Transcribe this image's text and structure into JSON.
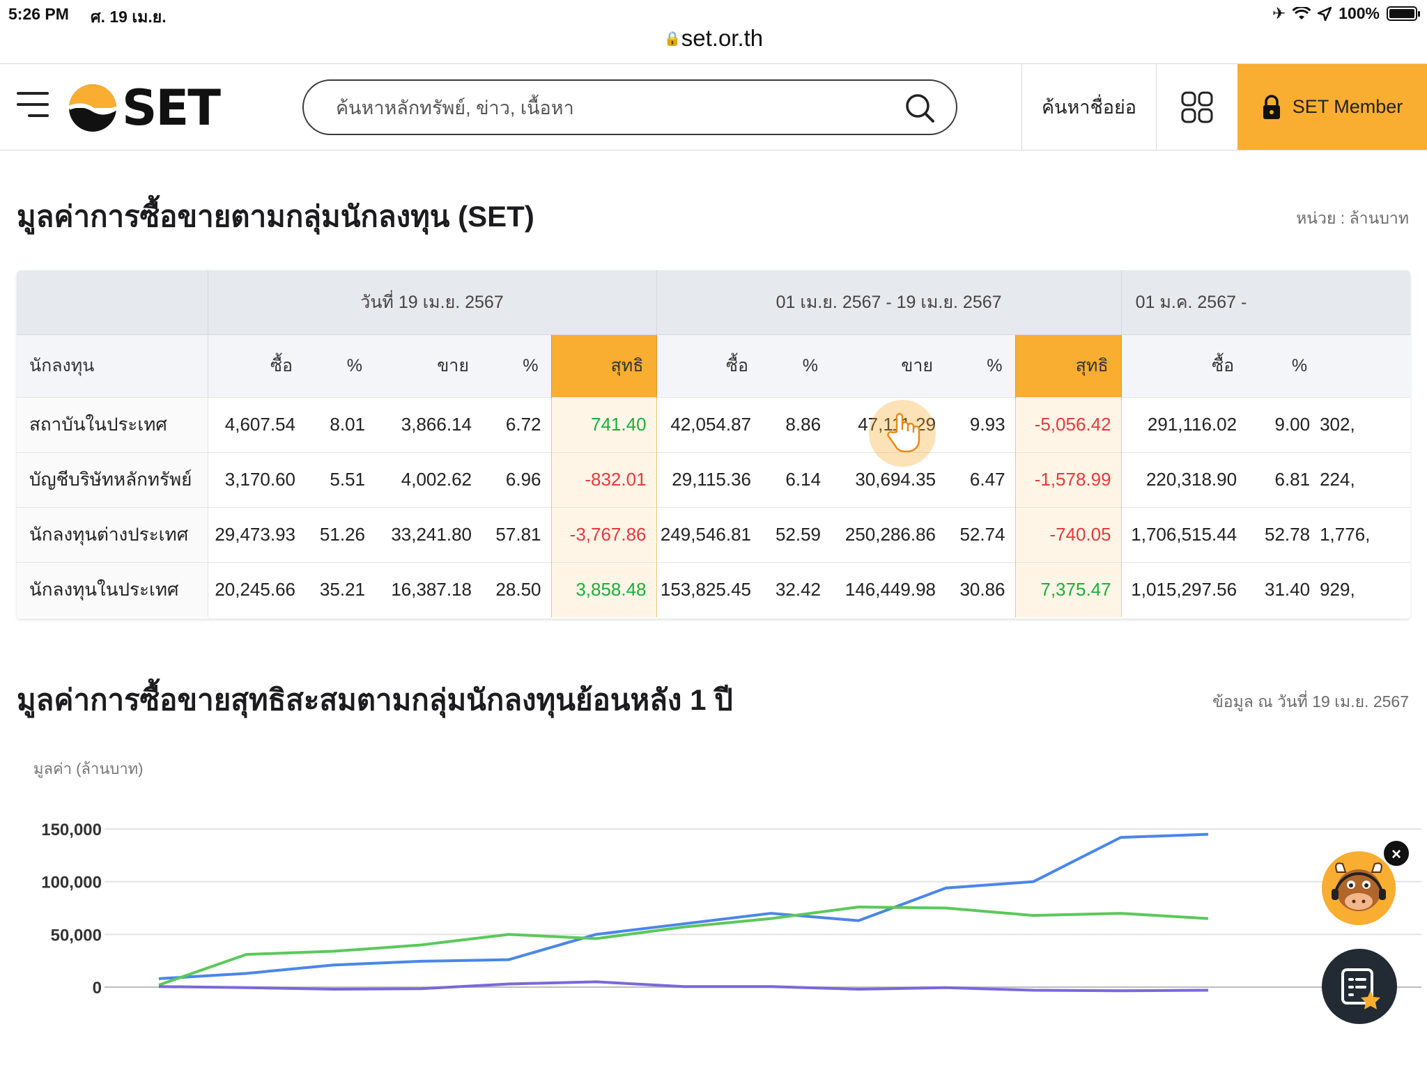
{
  "status": {
    "time": "5:26 PM",
    "date": "ศ. 19 เม.ย.",
    "battery": "100%"
  },
  "browser": {
    "url": "set.or.th"
  },
  "header": {
    "logo_text": "SET",
    "search_placeholder": "ค้นหาหลักทรัพย์, ข่าว, เนื้อหา",
    "symbol_search": "ค้นหาชื่อย่อ",
    "member_label": "SET Member"
  },
  "section1": {
    "title": "มูลค่าการซื้อขายตามกลุ่มนักลงทุน (SET)",
    "unit": "หน่วย : ล้านบาท"
  },
  "table": {
    "periods": [
      "วันที่ 19 เม.ย. 2567",
      "01 เม.ย. 2567 - 19 เม.ย. 2567",
      "01 ม.ค. 2567 -"
    ],
    "headers": {
      "investor": "นักลงทุน",
      "buy": "ซื้อ",
      "pct": "%",
      "sell": "ขาย",
      "net": "สุทธิ"
    },
    "rows": [
      {
        "name": "สถาบันในประเทศ",
        "cells": [
          "4,607.54",
          "8.01",
          "3,866.14",
          "6.72",
          "741.40",
          "42,054.87",
          "8.86",
          "47,111.29",
          "9.93",
          "-5,056.42",
          "291,116.02",
          "9.00",
          "302,"
        ]
      },
      {
        "name": "บัญชีบริษัทหลักทรัพย์",
        "cells": [
          "3,170.60",
          "5.51",
          "4,002.62",
          "6.96",
          "-832.01",
          "29,115.36",
          "6.14",
          "30,694.35",
          "6.47",
          "-1,578.99",
          "220,318.90",
          "6.81",
          "224,"
        ]
      },
      {
        "name": "นักลงทุนต่างประเทศ",
        "cells": [
          "29,473.93",
          "51.26",
          "33,241.80",
          "57.81",
          "-3,767.86",
          "249,546.81",
          "52.59",
          "250,286.86",
          "52.74",
          "-740.05",
          "1,706,515.44",
          "52.78",
          "1,776,"
        ]
      },
      {
        "name": "นักลงทุนในประเทศ",
        "cells": [
          "20,245.66",
          "35.21",
          "16,387.18",
          "28.50",
          "3,858.48",
          "153,825.45",
          "32.42",
          "146,449.98",
          "30.86",
          "7,375.47",
          "1,015,297.56",
          "31.40",
          "929,"
        ]
      }
    ]
  },
  "section2": {
    "title": "มูลค่าการซื้อขายสุทธิสะสมตามกลุ่มนักลงทุนย้อนหลัง 1 ปี",
    "as_of": "ข้อมูล ณ วันที่ 19 เม.ย. 2567"
  },
  "chart_data": {
    "type": "line",
    "ylabel": "มูลค่า (ล้านบาท)",
    "yticks": [
      "150,000",
      "100,000",
      "50,000",
      "0"
    ],
    "ylim": [
      0,
      150000
    ],
    "x": [
      0,
      1,
      2,
      3,
      4,
      5,
      6,
      7,
      8,
      9,
      10,
      11,
      12,
      13
    ],
    "grid": true,
    "series": [
      {
        "color": "#4a86e8",
        "values": [
          8000,
          13000,
          21000,
          24500,
          26000,
          50000,
          60000,
          70000,
          63000,
          94000,
          100000,
          142000,
          145000,
          null
        ]
      },
      {
        "color": "#5ac85a",
        "values": [
          2000,
          31000,
          34000,
          40000,
          50000,
          46000,
          57000,
          65000,
          76000,
          75000,
          68000,
          70000,
          65000,
          null
        ]
      },
      {
        "color": "#7b68d9",
        "values": [
          500,
          -500,
          -2000,
          -1500,
          3000,
          5000,
          500,
          500,
          -2000,
          -500,
          -3000,
          -3500,
          -3000,
          null
        ]
      }
    ]
  }
}
